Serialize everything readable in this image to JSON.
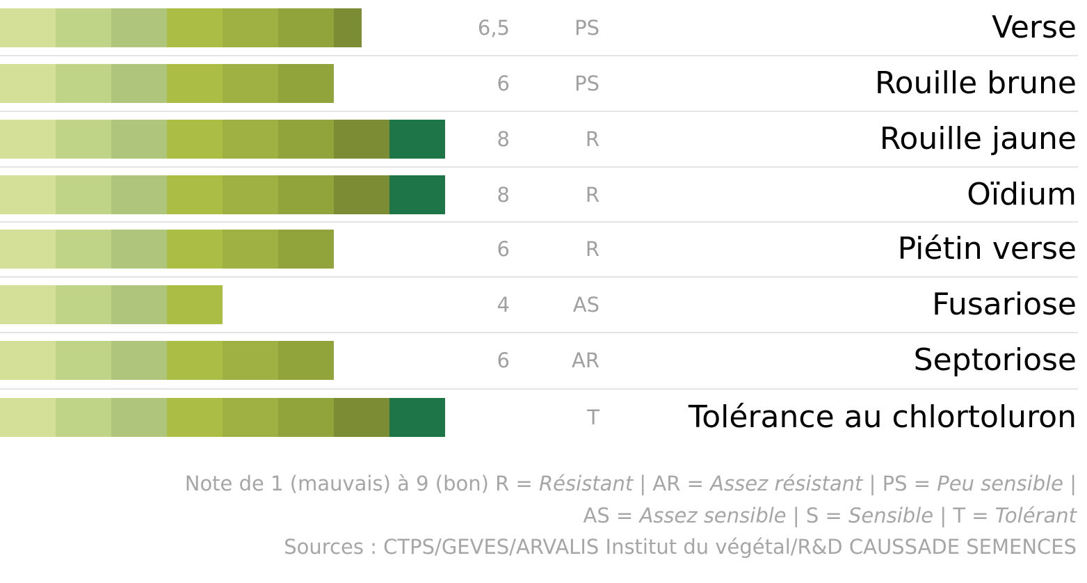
{
  "chart_data": {
    "type": "segmented-bar",
    "categories": [
      "Verse",
      "Rouille brune",
      "Rouille jaune",
      "Oïdium",
      "Piétin verse",
      "Fusariose",
      "Septoriose",
      "Tolérance au chlortoluron"
    ],
    "values": [
      6.5,
      6,
      8,
      8,
      6,
      4,
      6,
      8
    ],
    "value_labels": [
      "6,5",
      "6",
      "8",
      "8",
      "6",
      "4",
      "6",
      null
    ],
    "ratings": [
      "PS",
      "PS",
      "R",
      "R",
      "R",
      "AS",
      "AR",
      "T"
    ],
    "segment_colors": [
      "#d4e097",
      "#bfd486",
      "#b0c57c",
      "#abbd45",
      "#9eb142",
      "#91a43c",
      "#7b8c34",
      "#1e7648"
    ]
  },
  "footer": {
    "lines": [
      [
        "Note de 1 (mauvais) à 9 (bon) R = ",
        {
          "text": "Résistant",
          "italic": true
        },
        " | AR = ",
        {
          "text": "Assez résistant",
          "italic": true
        },
        " | PS = ",
        {
          "text": "Peu sensible",
          "italic": true
        },
        " |"
      ],
      [
        "AS = ",
        {
          "text": "Assez sensible",
          "italic": true
        },
        " | S = ",
        {
          "text": "Sensible",
          "italic": true
        },
        " | T = ",
        {
          "text": "Tolérant",
          "italic": true
        }
      ],
      [
        "Sources : CTPS/GEVES/ARVALIS Institut du végétal/R&D CAUSSADE SEMENCES"
      ]
    ]
  }
}
